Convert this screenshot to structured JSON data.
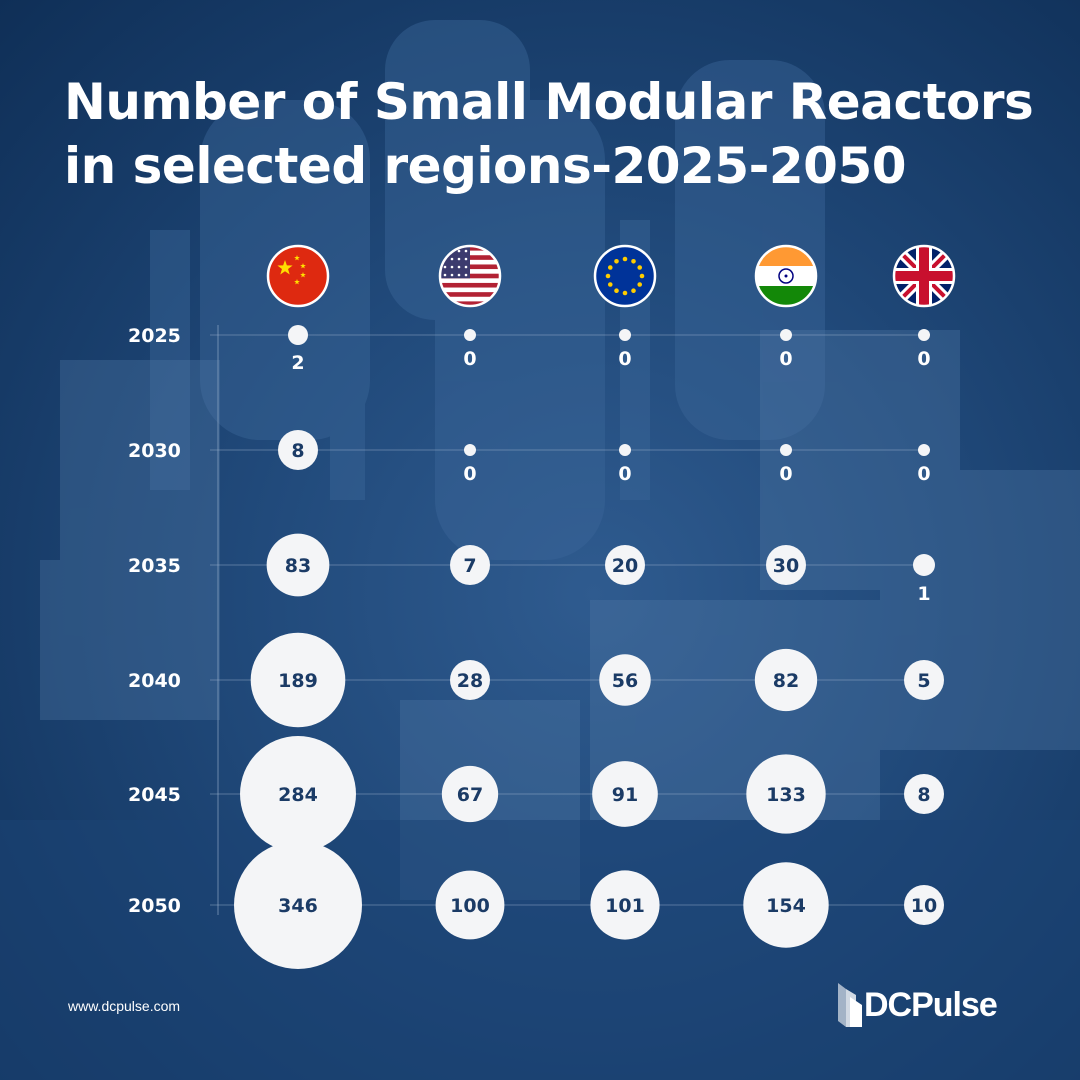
{
  "chart_data": {
    "type": "bubble",
    "title_line1": "Number of Small Modular Reactors",
    "title_line2": "in selected regions-2025-2050",
    "categories": [
      "China",
      "United States",
      "European Union",
      "India",
      "United Kingdom"
    ],
    "years": [
      "2025",
      "2030",
      "2035",
      "2040",
      "2045",
      "2050"
    ],
    "series": [
      {
        "values": [
          2,
          8,
          83,
          189,
          284,
          346
        ],
        "flag": "china-flag-icon"
      },
      {
        "values": [
          0,
          0,
          7,
          28,
          67,
          100
        ],
        "flag": "usa-flag-icon"
      },
      {
        "values": [
          0,
          0,
          20,
          56,
          91,
          101
        ],
        "flag": "eu-flag-icon"
      },
      {
        "values": [
          0,
          0,
          30,
          82,
          133,
          154
        ],
        "flag": "india-flag-icon"
      },
      {
        "values": [
          0,
          0,
          1,
          5,
          8,
          10
        ],
        "flag": "uk-flag-icon"
      }
    ],
    "grid": true,
    "colors": {
      "bubble": "#f4f5f7",
      "label_inside": "#1b3b66",
      "label_outside": "#ffffff",
      "gridline": "#9fb4cf"
    }
  },
  "footer": {
    "url": "www.dcpulse.com",
    "brand": "DCPulse"
  }
}
